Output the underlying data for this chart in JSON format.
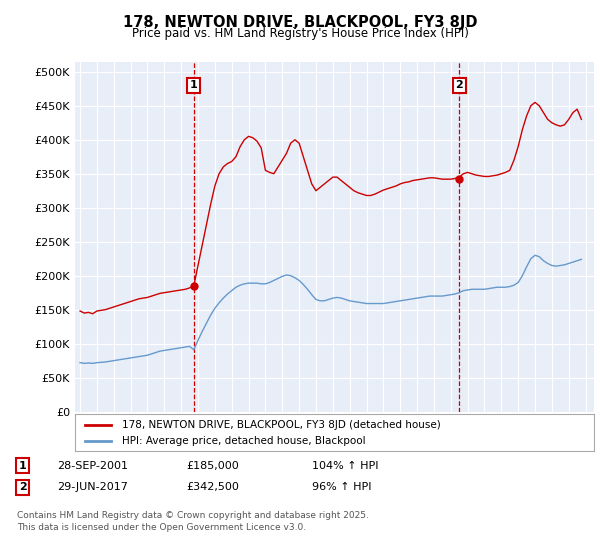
{
  "title": "178, NEWTON DRIVE, BLACKPOOL, FY3 8JD",
  "subtitle": "Price paid vs. HM Land Registry's House Price Index (HPI)",
  "ylabel_ticks": [
    "£0",
    "£50K",
    "£100K",
    "£150K",
    "£200K",
    "£250K",
    "£300K",
    "£350K",
    "£400K",
    "£450K",
    "£500K"
  ],
  "ytick_values": [
    0,
    50000,
    100000,
    150000,
    200000,
    250000,
    300000,
    350000,
    400000,
    450000,
    500000
  ],
  "xlim": [
    1994.7,
    2025.5
  ],
  "ylim": [
    0,
    515000
  ],
  "red_color": "#cc0000",
  "blue_color": "#6699cc",
  "background_color": "#e8eef8",
  "grid_color": "#ffffff",
  "vline_color": "#cc0000",
  "marker1_x": 2001.75,
  "marker1_y": 185000,
  "marker2_x": 2017.5,
  "marker2_y": 342500,
  "annotation1_label": "1",
  "annotation2_label": "2",
  "legend_line1": "178, NEWTON DRIVE, BLACKPOOL, FY3 8JD (detached house)",
  "legend_line2": "HPI: Average price, detached house, Blackpool",
  "table_row1": [
    "1",
    "28-SEP-2001",
    "£185,000",
    "104% ↑ HPI"
  ],
  "table_row2": [
    "2",
    "29-JUN-2017",
    "£342,500",
    "96% ↑ HPI"
  ],
  "footnote": "Contains HM Land Registry data © Crown copyright and database right 2025.\nThis data is licensed under the Open Government Licence v3.0.",
  "hpi_data": {
    "years": [
      1995.0,
      1995.25,
      1995.5,
      1995.75,
      1996.0,
      1996.25,
      1996.5,
      1996.75,
      1997.0,
      1997.25,
      1997.5,
      1997.75,
      1998.0,
      1998.25,
      1998.5,
      1998.75,
      1999.0,
      1999.25,
      1999.5,
      1999.75,
      2000.0,
      2000.25,
      2000.5,
      2000.75,
      2001.0,
      2001.25,
      2001.5,
      2001.75,
      2002.0,
      2002.25,
      2002.5,
      2002.75,
      2003.0,
      2003.25,
      2003.5,
      2003.75,
      2004.0,
      2004.25,
      2004.5,
      2004.75,
      2005.0,
      2005.25,
      2005.5,
      2005.75,
      2006.0,
      2006.25,
      2006.5,
      2006.75,
      2007.0,
      2007.25,
      2007.5,
      2007.75,
      2008.0,
      2008.25,
      2008.5,
      2008.75,
      2009.0,
      2009.25,
      2009.5,
      2009.75,
      2010.0,
      2010.25,
      2010.5,
      2010.75,
      2011.0,
      2011.25,
      2011.5,
      2011.75,
      2012.0,
      2012.25,
      2012.5,
      2012.75,
      2013.0,
      2013.25,
      2013.5,
      2013.75,
      2014.0,
      2014.25,
      2014.5,
      2014.75,
      2015.0,
      2015.25,
      2015.5,
      2015.75,
      2016.0,
      2016.25,
      2016.5,
      2016.75,
      2017.0,
      2017.25,
      2017.5,
      2017.75,
      2018.0,
      2018.25,
      2018.5,
      2018.75,
      2019.0,
      2019.25,
      2019.5,
      2019.75,
      2020.0,
      2020.25,
      2020.5,
      2020.75,
      2021.0,
      2021.25,
      2021.5,
      2021.75,
      2022.0,
      2022.25,
      2022.5,
      2022.75,
      2023.0,
      2023.25,
      2023.5,
      2023.75,
      2024.0,
      2024.25,
      2024.5,
      2024.75
    ],
    "values": [
      72000,
      71000,
      71500,
      71000,
      72000,
      72500,
      73000,
      74000,
      75000,
      76000,
      77000,
      78000,
      79000,
      80000,
      81000,
      82000,
      83000,
      85000,
      87000,
      89000,
      90000,
      91000,
      92000,
      93000,
      94000,
      95000,
      96000,
      91000,
      105000,
      118000,
      130000,
      142000,
      152000,
      160000,
      167000,
      173000,
      178000,
      183000,
      186000,
      188000,
      189000,
      189000,
      189000,
      188000,
      188000,
      190000,
      193000,
      196000,
      199000,
      201000,
      200000,
      197000,
      193000,
      187000,
      180000,
      172000,
      165000,
      163000,
      163000,
      165000,
      167000,
      168000,
      167000,
      165000,
      163000,
      162000,
      161000,
      160000,
      159000,
      159000,
      159000,
      159000,
      159000,
      160000,
      161000,
      162000,
      163000,
      164000,
      165000,
      166000,
      167000,
      168000,
      169000,
      170000,
      170000,
      170000,
      170000,
      171000,
      172000,
      173000,
      175000,
      178000,
      179000,
      180000,
      180000,
      180000,
      180000,
      181000,
      182000,
      183000,
      183000,
      183000,
      184000,
      186000,
      190000,
      200000,
      213000,
      225000,
      230000,
      228000,
      222000,
      218000,
      215000,
      214000,
      215000,
      216000,
      218000,
      220000,
      222000,
      224000
    ]
  },
  "red_data": {
    "years": [
      1995.0,
      1995.25,
      1995.5,
      1995.75,
      1996.0,
      1996.25,
      1996.5,
      1996.75,
      1997.0,
      1997.25,
      1997.5,
      1997.75,
      1998.0,
      1998.25,
      1998.5,
      1998.75,
      1999.0,
      1999.25,
      1999.5,
      1999.75,
      2000.0,
      2000.25,
      2000.5,
      2000.75,
      2001.0,
      2001.25,
      2001.5,
      2001.75,
      2002.0,
      2002.25,
      2002.5,
      2002.75,
      2003.0,
      2003.25,
      2003.5,
      2003.75,
      2004.0,
      2004.25,
      2004.5,
      2004.75,
      2005.0,
      2005.25,
      2005.5,
      2005.75,
      2006.0,
      2006.25,
      2006.5,
      2006.75,
      2007.0,
      2007.25,
      2007.5,
      2007.75,
      2008.0,
      2008.25,
      2008.5,
      2008.75,
      2009.0,
      2009.25,
      2009.5,
      2009.75,
      2010.0,
      2010.25,
      2010.5,
      2010.75,
      2011.0,
      2011.25,
      2011.5,
      2011.75,
      2012.0,
      2012.25,
      2012.5,
      2012.75,
      2013.0,
      2013.25,
      2013.5,
      2013.75,
      2014.0,
      2014.25,
      2014.5,
      2014.75,
      2015.0,
      2015.25,
      2015.5,
      2015.75,
      2016.0,
      2016.25,
      2016.5,
      2016.75,
      2017.0,
      2017.25,
      2017.5,
      2017.75,
      2018.0,
      2018.25,
      2018.5,
      2018.75,
      2019.0,
      2019.25,
      2019.5,
      2019.75,
      2020.0,
      2020.25,
      2020.5,
      2020.75,
      2021.0,
      2021.25,
      2021.5,
      2021.75,
      2022.0,
      2022.25,
      2022.5,
      2022.75,
      2023.0,
      2023.25,
      2023.5,
      2023.75,
      2024.0,
      2024.25,
      2024.5,
      2024.75
    ],
    "values": [
      148000,
      145000,
      146000,
      144000,
      148000,
      149000,
      150000,
      152000,
      154000,
      156000,
      158000,
      160000,
      162000,
      164000,
      166000,
      167000,
      168000,
      170000,
      172000,
      174000,
      175000,
      176000,
      177000,
      178000,
      179000,
      180000,
      182000,
      185000,
      215000,
      245000,
      275000,
      305000,
      332000,
      350000,
      360000,
      365000,
      368000,
      375000,
      390000,
      400000,
      405000,
      403000,
      398000,
      388000,
      355000,
      352000,
      350000,
      360000,
      370000,
      380000,
      395000,
      400000,
      395000,
      375000,
      355000,
      335000,
      325000,
      330000,
      335000,
      340000,
      345000,
      345000,
      340000,
      335000,
      330000,
      325000,
      322000,
      320000,
      318000,
      318000,
      320000,
      323000,
      326000,
      328000,
      330000,
      332000,
      335000,
      337000,
      338000,
      340000,
      341000,
      342000,
      343000,
      344000,
      344000,
      343000,
      342000,
      342000,
      342000,
      343000,
      345000,
      350000,
      352000,
      350000,
      348000,
      347000,
      346000,
      346000,
      347000,
      348000,
      350000,
      352000,
      355000,
      370000,
      390000,
      415000,
      435000,
      450000,
      455000,
      450000,
      440000,
      430000,
      425000,
      422000,
      420000,
      422000,
      430000,
      440000,
      445000,
      430000
    ]
  }
}
